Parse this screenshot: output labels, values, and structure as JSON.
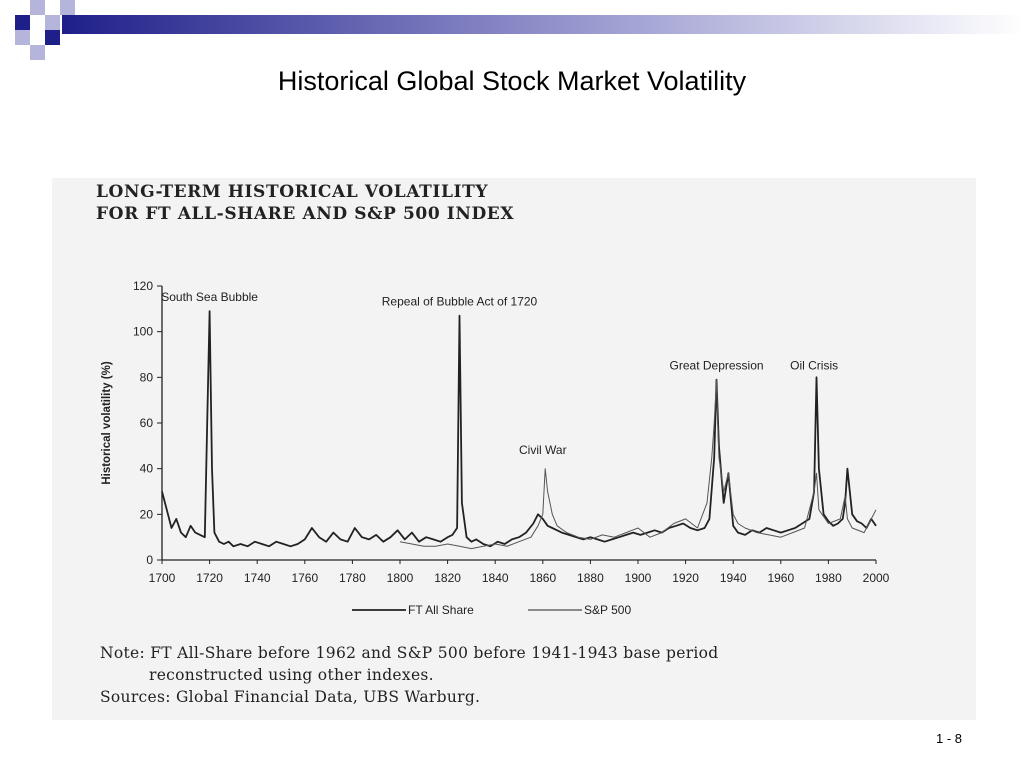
{
  "slide": {
    "title": "Historical Global Stock Market Volatility",
    "page_number": "1 - 8",
    "colors": {
      "deco_dark": "#1f1f8a",
      "deco_light": "#b5b5dc",
      "figure_bg": "#f3f3f3",
      "ink": "#222222"
    }
  },
  "figure": {
    "title_line1": "LONG-TERM HISTORICAL VOLATILITY",
    "title_line2": "FOR FT ALL-SHARE AND S&P 500 INDEX",
    "note_line1": "Note: FT All-Share before 1962 and S&P 500 before 1941-1943 base period",
    "note_line2": "reconstructed using other indexes.",
    "sources": "Sources: Global Financial Data, UBS Warburg."
  },
  "chart_data": {
    "type": "line",
    "title": "LONG-TERM HISTORICAL VOLATILITY FOR FT ALL-SHARE AND S&P 500 INDEX",
    "xlabel": "",
    "ylabel": "Historical volatility (%)",
    "xlim": [
      1700,
      2000
    ],
    "ylim": [
      0,
      120
    ],
    "x_ticks": [
      1700,
      1720,
      1740,
      1760,
      1780,
      1800,
      1820,
      1840,
      1860,
      1880,
      1900,
      1920,
      1940,
      1960,
      1980,
      2000
    ],
    "y_ticks": [
      0,
      20,
      40,
      60,
      80,
      100,
      120
    ],
    "grid": false,
    "legend_position": "bottom",
    "annotations": [
      {
        "text": "South Sea Bubble",
        "x": 1720,
        "y": 110
      },
      {
        "text": "Repeal of Bubble Act of 1720",
        "x": 1825,
        "y": 108
      },
      {
        "text": "Civil War",
        "x": 1860,
        "y": 43
      },
      {
        "text": "Great Depression",
        "x": 1933,
        "y": 80
      },
      {
        "text": "Oil Crisis",
        "x": 1974,
        "y": 80
      }
    ],
    "series": [
      {
        "name": "FT All Share",
        "style": "thick",
        "x": [
          1700,
          1702,
          1704,
          1706,
          1708,
          1710,
          1712,
          1714,
          1716,
          1718,
          1719,
          1720,
          1721,
          1722,
          1724,
          1726,
          1728,
          1730,
          1733,
          1736,
          1739,
          1742,
          1745,
          1748,
          1751,
          1754,
          1757,
          1760,
          1763,
          1766,
          1769,
          1772,
          1775,
          1778,
          1781,
          1784,
          1787,
          1790,
          1793,
          1796,
          1799,
          1802,
          1805,
          1808,
          1811,
          1814,
          1817,
          1820,
          1822,
          1824,
          1825,
          1826,
          1828,
          1830,
          1832,
          1835,
          1838,
          1841,
          1844,
          1847,
          1850,
          1853,
          1856,
          1858,
          1860,
          1862,
          1864,
          1866,
          1868,
          1871,
          1874,
          1877,
          1880,
          1883,
          1886,
          1889,
          1892,
          1895,
          1898,
          1901,
          1904,
          1907,
          1910,
          1913,
          1916,
          1919,
          1922,
          1925,
          1928,
          1930,
          1932,
          1933,
          1934,
          1936,
          1938,
          1940,
          1942,
          1945,
          1948,
          1951,
          1954,
          1957,
          1960,
          1963,
          1966,
          1969,
          1972,
          1974,
          1975,
          1976,
          1978,
          1980,
          1982,
          1984,
          1986,
          1987,
          1988,
          1990,
          1992,
          1994,
          1996,
          1998,
          2000
        ],
        "y": [
          30,
          22,
          14,
          18,
          12,
          10,
          15,
          12,
          11,
          10,
          60,
          109,
          40,
          12,
          8,
          7,
          8,
          6,
          7,
          6,
          8,
          7,
          6,
          8,
          7,
          6,
          7,
          9,
          14,
          10,
          8,
          12,
          9,
          8,
          14,
          10,
          9,
          11,
          8,
          10,
          13,
          9,
          12,
          8,
          10,
          9,
          8,
          10,
          11,
          14,
          107,
          25,
          10,
          8,
          9,
          7,
          6,
          8,
          7,
          9,
          10,
          12,
          16,
          20,
          18,
          15,
          14,
          13,
          12,
          11,
          10,
          9,
          10,
          9,
          8,
          9,
          10,
          11,
          12,
          11,
          12,
          13,
          12,
          14,
          15,
          16,
          14,
          13,
          14,
          18,
          45,
          79,
          50,
          25,
          38,
          15,
          12,
          11,
          13,
          12,
          14,
          13,
          12,
          13,
          14,
          16,
          18,
          30,
          80,
          40,
          20,
          17,
          15,
          16,
          18,
          25,
          40,
          20,
          17,
          16,
          14,
          18,
          15
        ]
      },
      {
        "name": "S&P 500",
        "style": "thin",
        "x": [
          1800,
          1805,
          1810,
          1815,
          1820,
          1825,
          1830,
          1835,
          1840,
          1845,
          1850,
          1855,
          1858,
          1860,
          1861,
          1862,
          1864,
          1866,
          1870,
          1875,
          1880,
          1885,
          1890,
          1895,
          1900,
          1905,
          1910,
          1915,
          1920,
          1925,
          1929,
          1931,
          1932,
          1933,
          1934,
          1936,
          1938,
          1940,
          1942,
          1945,
          1950,
          1955,
          1960,
          1965,
          1970,
          1974,
          1975,
          1976,
          1980,
          1985,
          1987,
          1988,
          1990,
          1995,
          2000
        ],
        "y": [
          8,
          7,
          6,
          6,
          7,
          6,
          5,
          6,
          7,
          6,
          8,
          10,
          15,
          20,
          40,
          30,
          20,
          15,
          12,
          10,
          9,
          11,
          10,
          12,
          14,
          10,
          12,
          16,
          18,
          14,
          25,
          45,
          60,
          79,
          45,
          30,
          38,
          20,
          16,
          14,
          12,
          11,
          10,
          12,
          14,
          30,
          38,
          22,
          16,
          18,
          28,
          18,
          14,
          12,
          22
        ]
      }
    ]
  }
}
